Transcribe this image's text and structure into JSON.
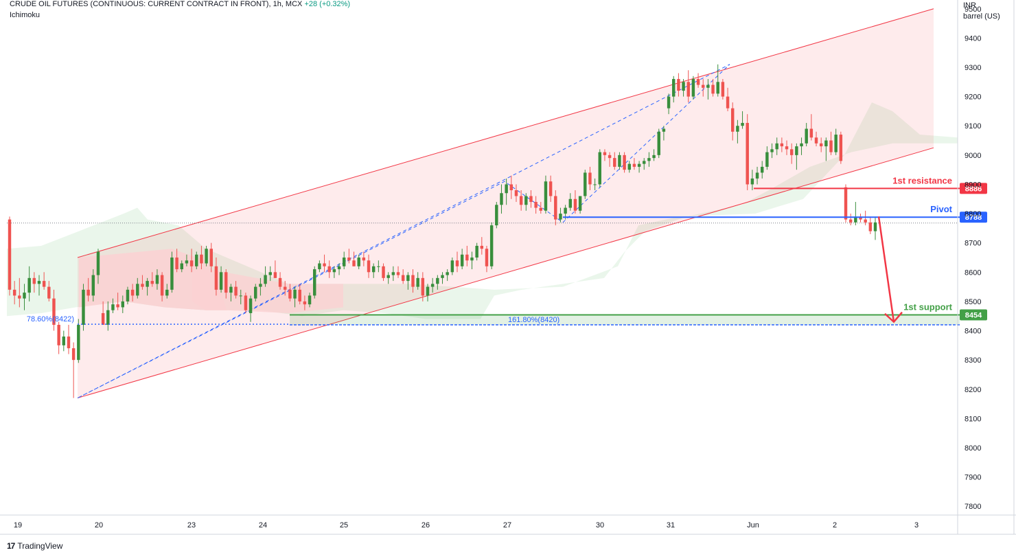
{
  "header": {
    "symbol": "CRUDE OIL FUTURES (CONTINUOUS: CURRENT CONTRACT IN FRONT), 1h, MCX",
    "change": "+28 (+0.32%)",
    "indicator": "Ichimoku"
  },
  "axis_unit": {
    "currency": "INR",
    "unit": "barrel (US)"
  },
  "footer": {
    "brand": "TradingView"
  },
  "colors": {
    "up": "#388e3c",
    "down": "#ef5350",
    "channel": "#f23645",
    "resistance": "#f23645",
    "pivot": "#2962ff",
    "support": "#43a047",
    "cloud_green": "#e8f5e9",
    "cloud_red": "#fce4e4"
  },
  "chart_data": {
    "type": "candlestick",
    "ylim": [
      7770,
      9530
    ],
    "y_ticks": [
      7800,
      7900,
      8000,
      8100,
      8200,
      8300,
      8400,
      8500,
      8600,
      8700,
      8800,
      8900,
      9000,
      9100,
      9200,
      9300,
      9400,
      9500
    ],
    "x_labels": [
      "19",
      "20",
      "23",
      "24",
      "25",
      "26",
      "27",
      "30",
      "31",
      "Jun",
      "2",
      "3"
    ],
    "levels": [
      {
        "label": "1st resistance",
        "value": 8886,
        "badge": "8886"
      },
      {
        "label": "Pivot",
        "value": 8788,
        "badge": "8788"
      },
      {
        "label": "1st support",
        "value": 8454,
        "badge": "8454"
      }
    ],
    "fibonacci": [
      {
        "label": "78.60%(8422)",
        "value": 8422
      },
      {
        "label": "161.80%(8420)",
        "value": 8420
      }
    ],
    "channel": {
      "upper": [
        [
          0,
          8650
        ],
        [
          1,
          9500
        ]
      ],
      "lower": [
        [
          0,
          8170
        ],
        [
          1,
          9025
        ]
      ]
    },
    "last_price": 8768,
    "candles": [
      [
        8780,
        8790,
        8520,
        8540
      ],
      [
        8540,
        8570,
        8490,
        8520
      ],
      [
        8520,
        8580,
        8480,
        8510
      ],
      [
        8510,
        8560,
        8470,
        8530
      ],
      [
        8530,
        8620,
        8500,
        8580
      ],
      [
        8580,
        8600,
        8530,
        8560
      ],
      [
        8560,
        8590,
        8520,
        8570
      ],
      [
        8570,
        8600,
        8540,
        8550
      ],
      [
        8550,
        8570,
        8500,
        8510
      ],
      [
        8510,
        8540,
        8400,
        8420
      ],
      [
        8420,
        8430,
        8320,
        8350
      ],
      [
        8350,
        8400,
        8330,
        8380
      ],
      [
        8380,
        8420,
        8320,
        8340
      ],
      [
        8340,
        8360,
        8170,
        8300
      ],
      [
        8300,
        8440,
        8290,
        8420
      ],
      [
        8420,
        8560,
        8400,
        8540
      ],
      [
        8540,
        8580,
        8500,
        8520
      ],
      [
        8520,
        8610,
        8500,
        8590
      ],
      [
        8590,
        8680,
        8560,
        8670
      ],
      [
        8460,
        8500,
        8420,
        8420
      ],
      [
        8420,
        8500,
        8400,
        8470
      ],
      [
        8470,
        8510,
        8460,
        8490
      ],
      [
        8490,
        8530,
        8470,
        8480
      ],
      [
        8480,
        8520,
        8460,
        8500
      ],
      [
        8500,
        8550,
        8490,
        8540
      ],
      [
        8540,
        8560,
        8500,
        8520
      ],
      [
        8520,
        8580,
        8510,
        8560
      ],
      [
        8560,
        8590,
        8540,
        8550
      ],
      [
        8550,
        8580,
        8520,
        8570
      ],
      [
        8570,
        8600,
        8550,
        8560
      ],
      [
        8560,
        8610,
        8540,
        8590
      ],
      [
        8590,
        8600,
        8500,
        8520
      ],
      [
        8520,
        8560,
        8510,
        8540
      ],
      [
        8540,
        8670,
        8530,
        8650
      ],
      [
        8650,
        8680,
        8600,
        8610
      ],
      [
        8610,
        8640,
        8600,
        8630
      ],
      [
        8630,
        8660,
        8620,
        8640
      ],
      [
        8640,
        8680,
        8600,
        8620
      ],
      [
        8620,
        8670,
        8610,
        8660
      ],
      [
        8660,
        8690,
        8610,
        8630
      ],
      [
        8630,
        8690,
        8620,
        8680
      ],
      [
        8680,
        8700,
        8600,
        8620
      ],
      [
        8620,
        8650,
        8520,
        8540
      ],
      [
        8540,
        8620,
        8530,
        8600
      ],
      [
        8600,
        8610,
        8510,
        8530
      ],
      [
        8530,
        8560,
        8500,
        8550
      ],
      [
        8550,
        8570,
        8510,
        8520
      ],
      [
        8520,
        8540,
        8490,
        8520
      ],
      [
        8520,
        8530,
        8460,
        8470
      ],
      [
        8460,
        8520,
        8430,
        8510
      ],
      [
        8510,
        8560,
        8500,
        8550
      ],
      [
        8550,
        8580,
        8520,
        8560
      ],
      [
        8560,
        8620,
        8550,
        8590
      ],
      [
        8590,
        8620,
        8570,
        8600
      ],
      [
        8600,
        8640,
        8580,
        8580
      ],
      [
        8580,
        8600,
        8540,
        8550
      ],
      [
        8550,
        8570,
        8520,
        8540
      ],
      [
        8540,
        8560,
        8500,
        8510
      ],
      [
        8510,
        8550,
        8480,
        8540
      ],
      [
        8540,
        8560,
        8490,
        8500
      ],
      [
        8500,
        8520,
        8470,
        8490
      ],
      [
        8490,
        8530,
        8480,
        8520
      ],
      [
        8520,
        8620,
        8510,
        8610
      ],
      [
        8610,
        8640,
        8600,
        8630
      ],
      [
        8630,
        8660,
        8600,
        8620
      ],
      [
        8620,
        8640,
        8580,
        8600
      ],
      [
        8600,
        8620,
        8580,
        8610
      ],
      [
        8610,
        8630,
        8590,
        8620
      ],
      [
        8620,
        8670,
        8610,
        8650
      ],
      [
        8650,
        8680,
        8630,
        8640
      ],
      [
        8640,
        8670,
        8620,
        8620
      ],
      [
        8620,
        8660,
        8610,
        8650
      ],
      [
        8650,
        8670,
        8620,
        8640
      ],
      [
        8640,
        8660,
        8580,
        8600
      ],
      [
        8600,
        8630,
        8580,
        8620
      ],
      [
        8620,
        8640,
        8600,
        8620
      ],
      [
        8620,
        8630,
        8570,
        8580
      ],
      [
        8580,
        8600,
        8560,
        8590
      ],
      [
        8590,
        8620,
        8570,
        8600
      ],
      [
        8600,
        8620,
        8580,
        8590
      ],
      [
        8590,
        8610,
        8560,
        8570
      ],
      [
        8570,
        8600,
        8540,
        8590
      ],
      [
        8590,
        8610,
        8530,
        8550
      ],
      [
        8550,
        8600,
        8540,
        8580
      ],
      [
        8580,
        8600,
        8500,
        8520
      ],
      [
        8520,
        8560,
        8500,
        8550
      ],
      [
        8550,
        8580,
        8530,
        8560
      ],
      [
        8560,
        8590,
        8540,
        8580
      ],
      [
        8580,
        8600,
        8560,
        8590
      ],
      [
        8590,
        8610,
        8570,
        8600
      ],
      [
        8600,
        8650,
        8590,
        8640
      ],
      [
        8640,
        8670,
        8600,
        8620
      ],
      [
        8620,
        8680,
        8610,
        8660
      ],
      [
        8660,
        8690,
        8620,
        8640
      ],
      [
        8640,
        8670,
        8610,
        8650
      ],
      [
        8650,
        8700,
        8640,
        8690
      ],
      [
        8690,
        8720,
        8660,
        8680
      ],
      [
        8680,
        8690,
        8600,
        8620
      ],
      [
        8620,
        8770,
        8610,
        8760
      ],
      [
        8760,
        8840,
        8750,
        8830
      ],
      [
        8830,
        8900,
        8800,
        8870
      ],
      [
        8870,
        8920,
        8830,
        8900
      ],
      [
        8900,
        8930,
        8850,
        8880
      ],
      [
        8880,
        8900,
        8840,
        8860
      ],
      [
        8860,
        8880,
        8810,
        8830
      ],
      [
        8830,
        8870,
        8810,
        8860
      ],
      [
        8860,
        8880,
        8820,
        8840
      ],
      [
        8840,
        8860,
        8800,
        8820
      ],
      [
        8820,
        8840,
        8800,
        8810
      ],
      [
        8810,
        8930,
        8800,
        8910
      ],
      [
        8910,
        8930,
        8840,
        8860
      ],
      [
        8860,
        8880,
        8760,
        8780
      ],
      [
        8780,
        8820,
        8770,
        8800
      ],
      [
        8800,
        8830,
        8780,
        8820
      ],
      [
        8820,
        8870,
        8810,
        8850
      ],
      [
        8850,
        8880,
        8800,
        8810
      ],
      [
        8810,
        8860,
        8800,
        8860
      ],
      [
        8860,
        8950,
        8850,
        8940
      ],
      [
        8940,
        8960,
        8880,
        8900
      ],
      [
        8900,
        8920,
        8880,
        8900
      ],
      [
        8900,
        9020,
        8890,
        9010
      ],
      [
        9010,
        9020,
        8980,
        9000
      ],
      [
        9000,
        9010,
        8960,
        8990
      ],
      [
        8990,
        9010,
        8950,
        8960
      ],
      [
        8960,
        9010,
        8950,
        9000
      ],
      [
        9000,
        9010,
        8940,
        8950
      ],
      [
        8950,
        8980,
        8940,
        8970
      ],
      [
        8970,
        8990,
        8950,
        8960
      ],
      [
        8960,
        8980,
        8940,
        8970
      ],
      [
        8970,
        8990,
        8950,
        8980
      ],
      [
        8980,
        9010,
        8960,
        8990
      ],
      [
        8990,
        9020,
        8980,
        9000
      ],
      [
        9000,
        9090,
        8990,
        9080
      ],
      [
        9080,
        9100,
        9050,
        9090
      ],
      [
        9160,
        9210,
        9140,
        9200
      ],
      [
        9200,
        9270,
        9180,
        9260
      ],
      [
        9260,
        9280,
        9200,
        9220
      ],
      [
        9220,
        9260,
        9200,
        9250
      ],
      [
        9250,
        9290,
        9180,
        9200
      ],
      [
        9200,
        9270,
        9190,
        9260
      ],
      [
        9260,
        9280,
        9230,
        9240
      ],
      [
        9240,
        9260,
        9200,
        9230
      ],
      [
        9230,
        9260,
        9190,
        9240
      ],
      [
        9240,
        9260,
        9200,
        9210
      ],
      [
        9210,
        9310,
        9200,
        9250
      ],
      [
        9250,
        9260,
        9190,
        9200
      ],
      [
        9200,
        9230,
        9150,
        9160
      ],
      [
        9160,
        9180,
        9050,
        9080
      ],
      [
        9080,
        9120,
        9040,
        9100
      ],
      [
        9100,
        9150,
        9090,
        9110
      ],
      [
        9110,
        9140,
        8880,
        8900
      ],
      [
        8900,
        8950,
        8880,
        8920
      ],
      [
        8920,
        8960,
        8900,
        8940
      ],
      [
        8940,
        8980,
        8920,
        8960
      ],
      [
        8960,
        9030,
        8950,
        9010
      ],
      [
        9010,
        9040,
        8990,
        9020
      ],
      [
        9020,
        9060,
        9000,
        9040
      ],
      [
        9040,
        9060,
        9010,
        9030
      ],
      [
        9030,
        9050,
        9000,
        9020
      ],
      [
        9020,
        9040,
        8970,
        9000
      ],
      [
        9000,
        9040,
        8950,
        9030
      ],
      [
        9030,
        9060,
        9000,
        9040
      ],
      [
        9040,
        9110,
        9030,
        9090
      ],
      [
        9090,
        9140,
        9050,
        9060
      ],
      [
        9060,
        9080,
        9030,
        9040
      ],
      [
        9040,
        9060,
        9010,
        9030
      ],
      [
        9030,
        9060,
        8980,
        9050
      ],
      [
        9050,
        9080,
        9000,
        9010
      ],
      [
        9010,
        9090,
        9000,
        9070
      ],
      [
        9070,
        9080,
        8970,
        8980
      ],
      [
        8890,
        8900,
        8770,
        8780
      ],
      [
        8780,
        8800,
        8760,
        8770
      ],
      [
        8770,
        8840,
        8760,
        8790
      ],
      [
        8790,
        8800,
        8770,
        8780
      ],
      [
        8780,
        8810,
        8760,
        8770
      ],
      [
        8770,
        8790,
        8730,
        8740
      ],
      [
        8740,
        8790,
        8710,
        8770
      ]
    ]
  }
}
